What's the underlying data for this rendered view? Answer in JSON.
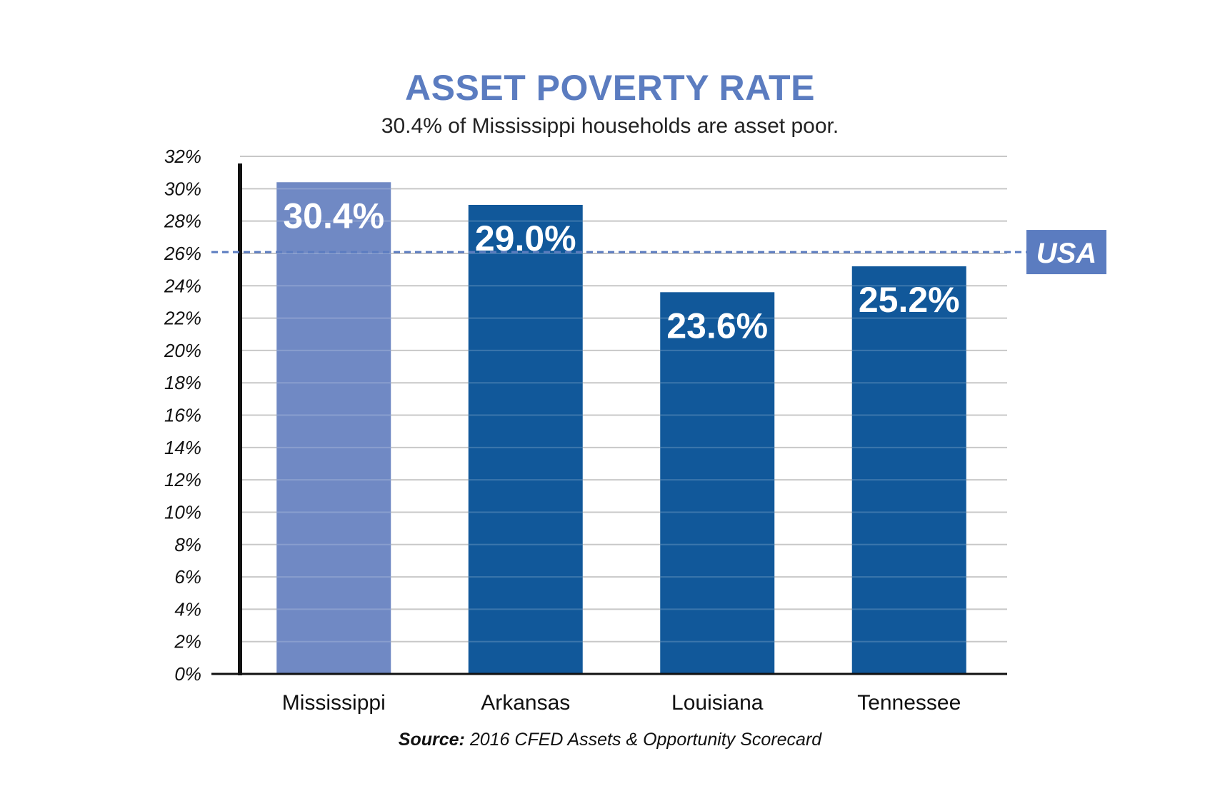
{
  "title": "ASSET POVERTY RATE",
  "subtitle": "30.4% of Mississippi households are asset poor.",
  "source": {
    "label": "Source:",
    "text": "2016 CFED Assets & Opportunity Scorecard"
  },
  "reference_line": {
    "label": "USA",
    "value": 25.2,
    "color": "#5b7cc0"
  },
  "colors": {
    "highlight_bar": "#7089c4",
    "bar": "#11589a",
    "gridline": "#c8c8c8",
    "axis": "#111111",
    "bar_label": "#ffffff",
    "title": "#5b7cc0"
  },
  "chart_data": {
    "type": "bar",
    "categories": [
      "Mississippi",
      "Arkansas",
      "Louisiana",
      "Tennessee"
    ],
    "values": [
      30.4,
      29.0,
      23.6,
      25.2
    ],
    "data_labels": [
      "30.4%",
      "29.0%",
      "23.6%",
      "25.2%"
    ],
    "highlighted": [
      "Mississippi"
    ],
    "ylim": [
      0,
      32
    ],
    "yticks": [
      "0%",
      "2%",
      "4%",
      "6%",
      "8%",
      "10%",
      "12%",
      "14%",
      "16%",
      "18%",
      "20%",
      "22%",
      "24%",
      "26%",
      "28%",
      "30%",
      "32%"
    ],
    "grid": true,
    "title": "ASSET POVERTY RATE",
    "xlabel": "",
    "ylabel": ""
  }
}
